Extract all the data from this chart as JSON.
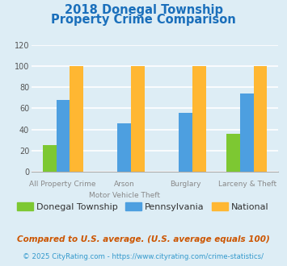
{
  "title_line1": "2018 Donegal Township",
  "title_line2": "Property Crime Comparison",
  "title_color": "#1a6fbb",
  "groups": [
    {
      "label": "Donegal Township",
      "color": "#7dc832",
      "values": [
        25,
        0,
        0,
        36
      ]
    },
    {
      "label": "Pennsylvania",
      "color": "#4d9fe0",
      "values": [
        68,
        46,
        56,
        74
      ]
    },
    {
      "label": "National",
      "color": "#ffb732",
      "values": [
        100,
        100,
        100,
        100
      ]
    }
  ],
  "x_labels_top": [
    "All Property Crime",
    "Arson",
    "Burglary",
    "Larceny & Theft"
  ],
  "x_labels_bot": [
    "",
    "Motor Vehicle Theft",
    "",
    ""
  ],
  "ylim": [
    0,
    120
  ],
  "yticks": [
    0,
    20,
    40,
    60,
    80,
    100,
    120
  ],
  "background_color": "#ddedf5",
  "plot_bg_color": "#ddedf5",
  "grid_color": "#ffffff",
  "footer_note": "Compared to U.S. average. (U.S. average equals 100)",
  "footer_copy": "© 2025 CityRating.com - https://www.cityrating.com/crime-statistics/",
  "footer_note_color": "#cc5500",
  "footer_copy_color": "#3399cc",
  "legend_label_color": "#333333",
  "bar_width": 0.22
}
